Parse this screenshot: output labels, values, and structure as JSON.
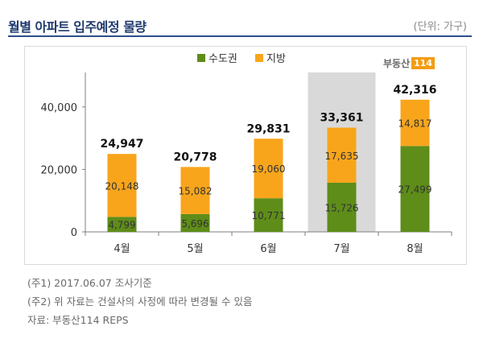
{
  "header": {
    "title": "월별 아파트 입주예정 물량",
    "unit": "(단위: 가구)"
  },
  "logo": {
    "brand": "부동산",
    "num": "114"
  },
  "chart_data": {
    "type": "bar",
    "stacked": true,
    "categories": [
      "4월",
      "5월",
      "6월",
      "7월",
      "8월"
    ],
    "series": [
      {
        "name": "수도권",
        "color": "#5e8d19",
        "values": [
          4799,
          5696,
          10771,
          15726,
          27499
        ]
      },
      {
        "name": "지방",
        "color": "#f8a51c",
        "values": [
          20148,
          15082,
          19060,
          17635,
          14817
        ]
      }
    ],
    "totals": [
      24947,
      20778,
      29831,
      33361,
      42316
    ],
    "highlight_index": 3,
    "highlight_color": "#d9d9d9",
    "ylim": [
      0,
      50000
    ],
    "yticks": [
      0,
      20000,
      40000
    ],
    "ytick_labels": [
      "0",
      "20,000",
      "40,000"
    ],
    "legend_position": "top",
    "grid": false
  },
  "notes": [
    "(주1) 2017.06.07 조사기준",
    "(주2) 위 자료는 건설사의 사정에 따라 변경될 수 있음",
    "자료: 부동산114 REPS"
  ]
}
